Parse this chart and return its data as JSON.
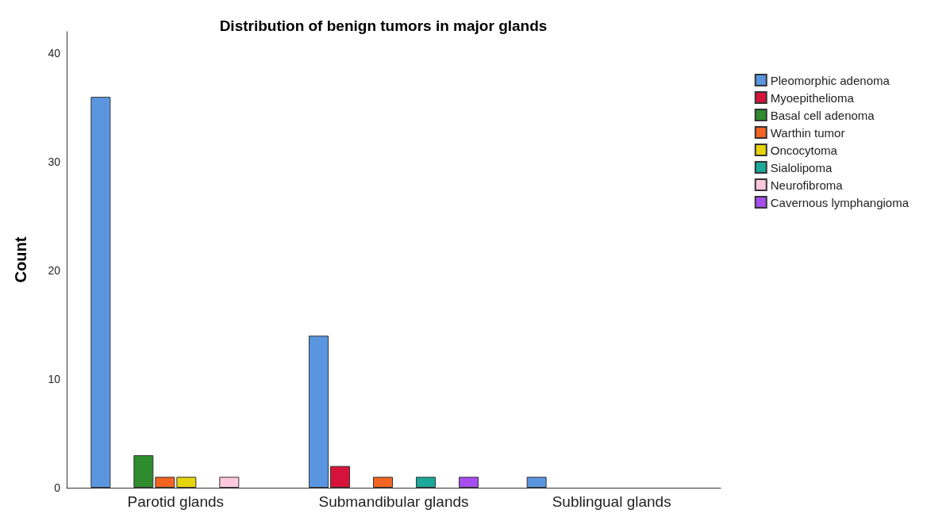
{
  "chart_data": {
    "type": "bar",
    "title": "Distribution of benign tumors in major glands",
    "ylabel": "Count",
    "categories": [
      "Parotid glands",
      "Submandibular glands",
      "Sublingual glands"
    ],
    "series": [
      {
        "name": "Pleomorphic adenoma",
        "color": "#5a96e0",
        "values": [
          36,
          14,
          1
        ]
      },
      {
        "name": "Myoepithelioma",
        "color": "#d6133a",
        "values": [
          null,
          2,
          null
        ]
      },
      {
        "name": "Basal cell adenoma",
        "color": "#2e8b2e",
        "values": [
          3,
          null,
          null
        ]
      },
      {
        "name": "Warthin tumor",
        "color": "#f26522",
        "values": [
          1,
          1,
          null
        ]
      },
      {
        "name": "Oncocytoma",
        "color": "#e6d40a",
        "values": [
          1,
          null,
          null
        ]
      },
      {
        "name": "Sialolipoma",
        "color": "#1aa99a",
        "values": [
          null,
          1,
          null
        ]
      },
      {
        "name": "Neurofibroma",
        "color": "#ffc8dc",
        "values": [
          1,
          null,
          null
        ]
      },
      {
        "name": "Cavernous lymphangioma",
        "color": "#a64ef0",
        "values": [
          null,
          1,
          null
        ]
      }
    ],
    "ylim": [
      0,
      42
    ],
    "yticks": [
      0,
      10,
      20,
      30,
      40
    ],
    "grid": false,
    "legend": "top right"
  }
}
